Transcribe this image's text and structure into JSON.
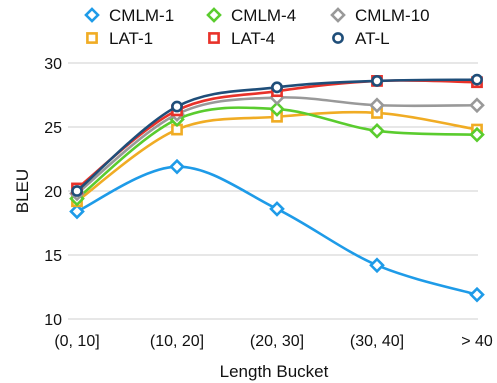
{
  "chart_data": {
    "type": "line",
    "title": "",
    "xlabel": "Length Bucket",
    "ylabel": "BLEU",
    "categories": [
      "(0, 10]",
      "(10, 20]",
      "(20, 30]",
      "(30, 40]",
      "> 40"
    ],
    "ylim": [
      10,
      30
    ],
    "yticks": [
      10,
      15,
      20,
      25,
      30
    ],
    "grid": "horizontal",
    "legend_position": "top",
    "series": [
      {
        "name": "CMLM-1",
        "color": "#1e9be8",
        "marker": "diamond",
        "values": [
          18.4,
          21.9,
          18.6,
          14.2,
          11.9
        ]
      },
      {
        "name": "CMLM-4",
        "color": "#5acc2e",
        "marker": "diamond",
        "values": [
          19.4,
          25.6,
          26.4,
          24.7,
          24.4
        ]
      },
      {
        "name": "CMLM-10",
        "color": "#999999",
        "marker": "diamond",
        "values": [
          19.8,
          26.0,
          27.3,
          26.7,
          26.7
        ]
      },
      {
        "name": "LAT-1",
        "color": "#f0ac24",
        "marker": "square",
        "values": [
          19.2,
          24.8,
          25.8,
          26.1,
          24.8
        ]
      },
      {
        "name": "LAT-4",
        "color": "#e8322a",
        "marker": "square",
        "values": [
          20.2,
          26.3,
          27.8,
          28.6,
          28.5
        ]
      },
      {
        "name": "AT-L",
        "color": "#1f4e79",
        "marker": "circle",
        "values": [
          20.0,
          26.6,
          28.1,
          28.6,
          28.7
        ]
      }
    ]
  }
}
